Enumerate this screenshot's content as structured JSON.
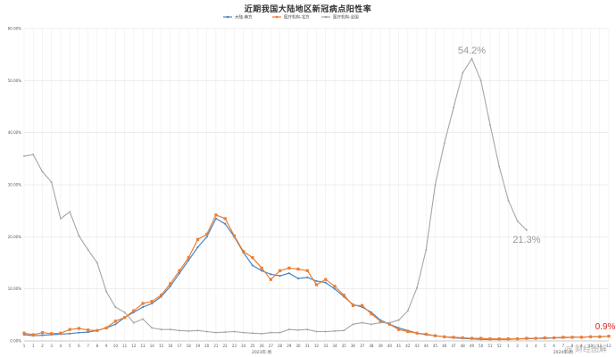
{
  "watermark": "@ 财经图解",
  "chart_data": {
    "type": "line",
    "title": "近期我国大陆地区新冠病点阳性率",
    "x_labels": [
      "1",
      "1",
      "2",
      "3",
      "4",
      "5",
      "6",
      "7",
      "8",
      "9",
      "10",
      "11",
      "12",
      "13",
      "14",
      "15",
      "16",
      "17",
      "18",
      "19",
      "20",
      "21",
      "22",
      "23",
      "24",
      "25",
      "26",
      "27",
      "28",
      "29",
      "30",
      "31",
      "32",
      "33",
      "34",
      "35",
      "36",
      "37",
      "38",
      "39",
      "40",
      "41",
      "42",
      "43",
      "44",
      "45",
      "46",
      "47",
      "48",
      "49",
      "50",
      "51",
      "52",
      "1",
      "2",
      "3",
      "4",
      "5",
      "6",
      "7",
      "8",
      "9",
      "10",
      "11",
      "12"
    ],
    "period_labels": [
      "2023年-周",
      "2024年-周"
    ],
    "yticks": [
      0,
      10,
      20,
      30,
      40,
      50,
      60
    ],
    "ytick_labels": [
      "0.00%",
      "10.00%",
      "20.00%",
      "30.00%",
      "40.00%",
      "50.00%",
      "60.00%"
    ],
    "ylim": [
      0,
      60
    ],
    "grid": true,
    "legend_position": "top-center",
    "series": [
      {
        "name": "大陆-南方",
        "color": "#4a86c8",
        "values": [
          1.2,
          1.0,
          1.1,
          1.2,
          1.3,
          1.4,
          1.6,
          1.7,
          2.0,
          2.5,
          3.2,
          4.5,
          5.5,
          6.5,
          7.2,
          8.5,
          10.5,
          13,
          15.5,
          18,
          20,
          23.5,
          22.5,
          20,
          17,
          14.5,
          13.5,
          12.8,
          12.5,
          13,
          12,
          12.2,
          11.5,
          11.2,
          10,
          8.5,
          7,
          6.5,
          5.5,
          4,
          3.2,
          2.5,
          2,
          1.5,
          1.2,
          1,
          0.8,
          0.6,
          0.5,
          0.4,
          0.3,
          0.3,
          0.3,
          0.3,
          0.4,
          0.4,
          0.5,
          0.5,
          0.6,
          0.6,
          0.7,
          0.7,
          0.8,
          0.8,
          0.9
        ]
      },
      {
        "name": "医疗机构-北方",
        "color": "#ed7d31",
        "values": [
          1.5,
          1.2,
          1.6,
          1.4,
          1.5,
          2.2,
          2.4,
          2.1,
          2.0,
          2.5,
          3.8,
          4.5,
          5.8,
          7.2,
          7.6,
          8.8,
          11,
          13.5,
          16,
          19.5,
          20.5,
          24.2,
          23.5,
          20.2,
          17.2,
          16,
          14,
          11.8,
          13.5,
          14,
          13.8,
          13.5,
          10.8,
          11.8,
          10.5,
          8.8,
          6.8,
          6.8,
          5.2,
          3.8,
          3.2,
          2.2,
          1.8,
          1.5,
          1.3,
          1.0,
          0.8,
          0.7,
          0.6,
          0.5,
          0.5,
          0.4,
          0.4,
          0.4,
          0.4,
          0.5,
          0.5,
          0.6,
          0.6,
          0.7,
          0.7,
          0.7,
          0.8,
          0.8,
          0.9
        ]
      },
      {
        "name": "医疗机构-全国",
        "color": "#a6a6a6",
        "values": [
          35.5,
          35.8,
          32.5,
          30.5,
          23.5,
          24.8,
          20.2,
          17.5,
          15,
          9.5,
          6.5,
          5.5,
          3.5,
          4.2,
          2.5,
          2.2,
          2.2,
          2.0,
          1.9,
          2.0,
          1.8,
          1.6,
          1.7,
          1.8,
          1.6,
          1.5,
          1.4,
          1.6,
          1.6,
          2.2,
          2.1,
          2.2,
          1.8,
          1.8,
          1.9,
          2.0,
          3.2,
          3.5,
          3.2,
          3.5,
          3.5,
          4.0,
          5.8,
          10.2,
          17.5,
          30,
          38,
          44.8,
          51.5,
          54.2,
          50,
          41.5,
          33.5,
          27,
          23,
          21.3
        ]
      }
    ],
    "annotations": [
      {
        "text": "54.2%",
        "series": 2,
        "index": 49,
        "color": "#999999"
      },
      {
        "text": "21.3%",
        "series": 2,
        "index": 55,
        "color": "#999999"
      },
      {
        "text": "0.9%",
        "series": 1,
        "index": 64,
        "color": "#e02020"
      }
    ]
  }
}
